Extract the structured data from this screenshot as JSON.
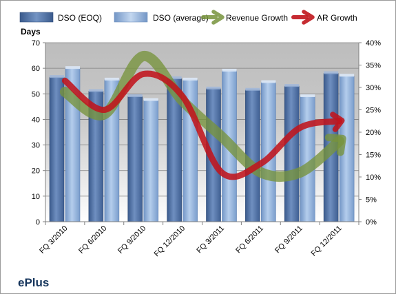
{
  "company": "ePlus",
  "chart_data": {
    "type": "bar",
    "title": "",
    "ylabel": "Days",
    "xlabel": "",
    "categories": [
      "FQ 3/2010",
      "FQ 6/2010",
      "FQ 9/2010",
      "FQ 12/2010",
      "FQ 3/2011",
      "FQ 6/2011",
      "FQ 9/2011",
      "FQ 12/2011"
    ],
    "ylim": [
      0,
      70
    ],
    "yticks": [
      0,
      10,
      20,
      30,
      40,
      50,
      60,
      70
    ],
    "y2lim": [
      0,
      0.4
    ],
    "y2ticks": [
      "0%",
      "5%",
      "10%",
      "15%",
      "20%",
      "25%",
      "30%",
      "35%",
      "40%"
    ],
    "grid": true,
    "legend_position": "top",
    "series": [
      {
        "name": "DSO (EOQ)",
        "type": "bar",
        "axis": "left",
        "color": "#4f6fa0",
        "values": [
          56.5,
          51,
          49,
          56,
          52,
          51.5,
          53,
          58
        ]
      },
      {
        "name": "DSO (average)",
        "type": "bar",
        "axis": "left",
        "color": "#8db3e2",
        "values": [
          60,
          55.5,
          47.5,
          55.5,
          59,
          54.5,
          49,
          57
        ]
      },
      {
        "name": "Revenue Growth",
        "type": "line",
        "axis": "right",
        "color": "#77933c",
        "values": [
          0.29,
          0.24,
          0.37,
          0.27,
          0.19,
          0.11,
          0.11,
          0.18
        ]
      },
      {
        "name": "AR Growth",
        "type": "line",
        "axis": "right",
        "color": "#c0151c",
        "values": [
          0.315,
          0.25,
          0.33,
          0.28,
          0.11,
          0.13,
          0.21,
          0.225
        ]
      }
    ]
  }
}
